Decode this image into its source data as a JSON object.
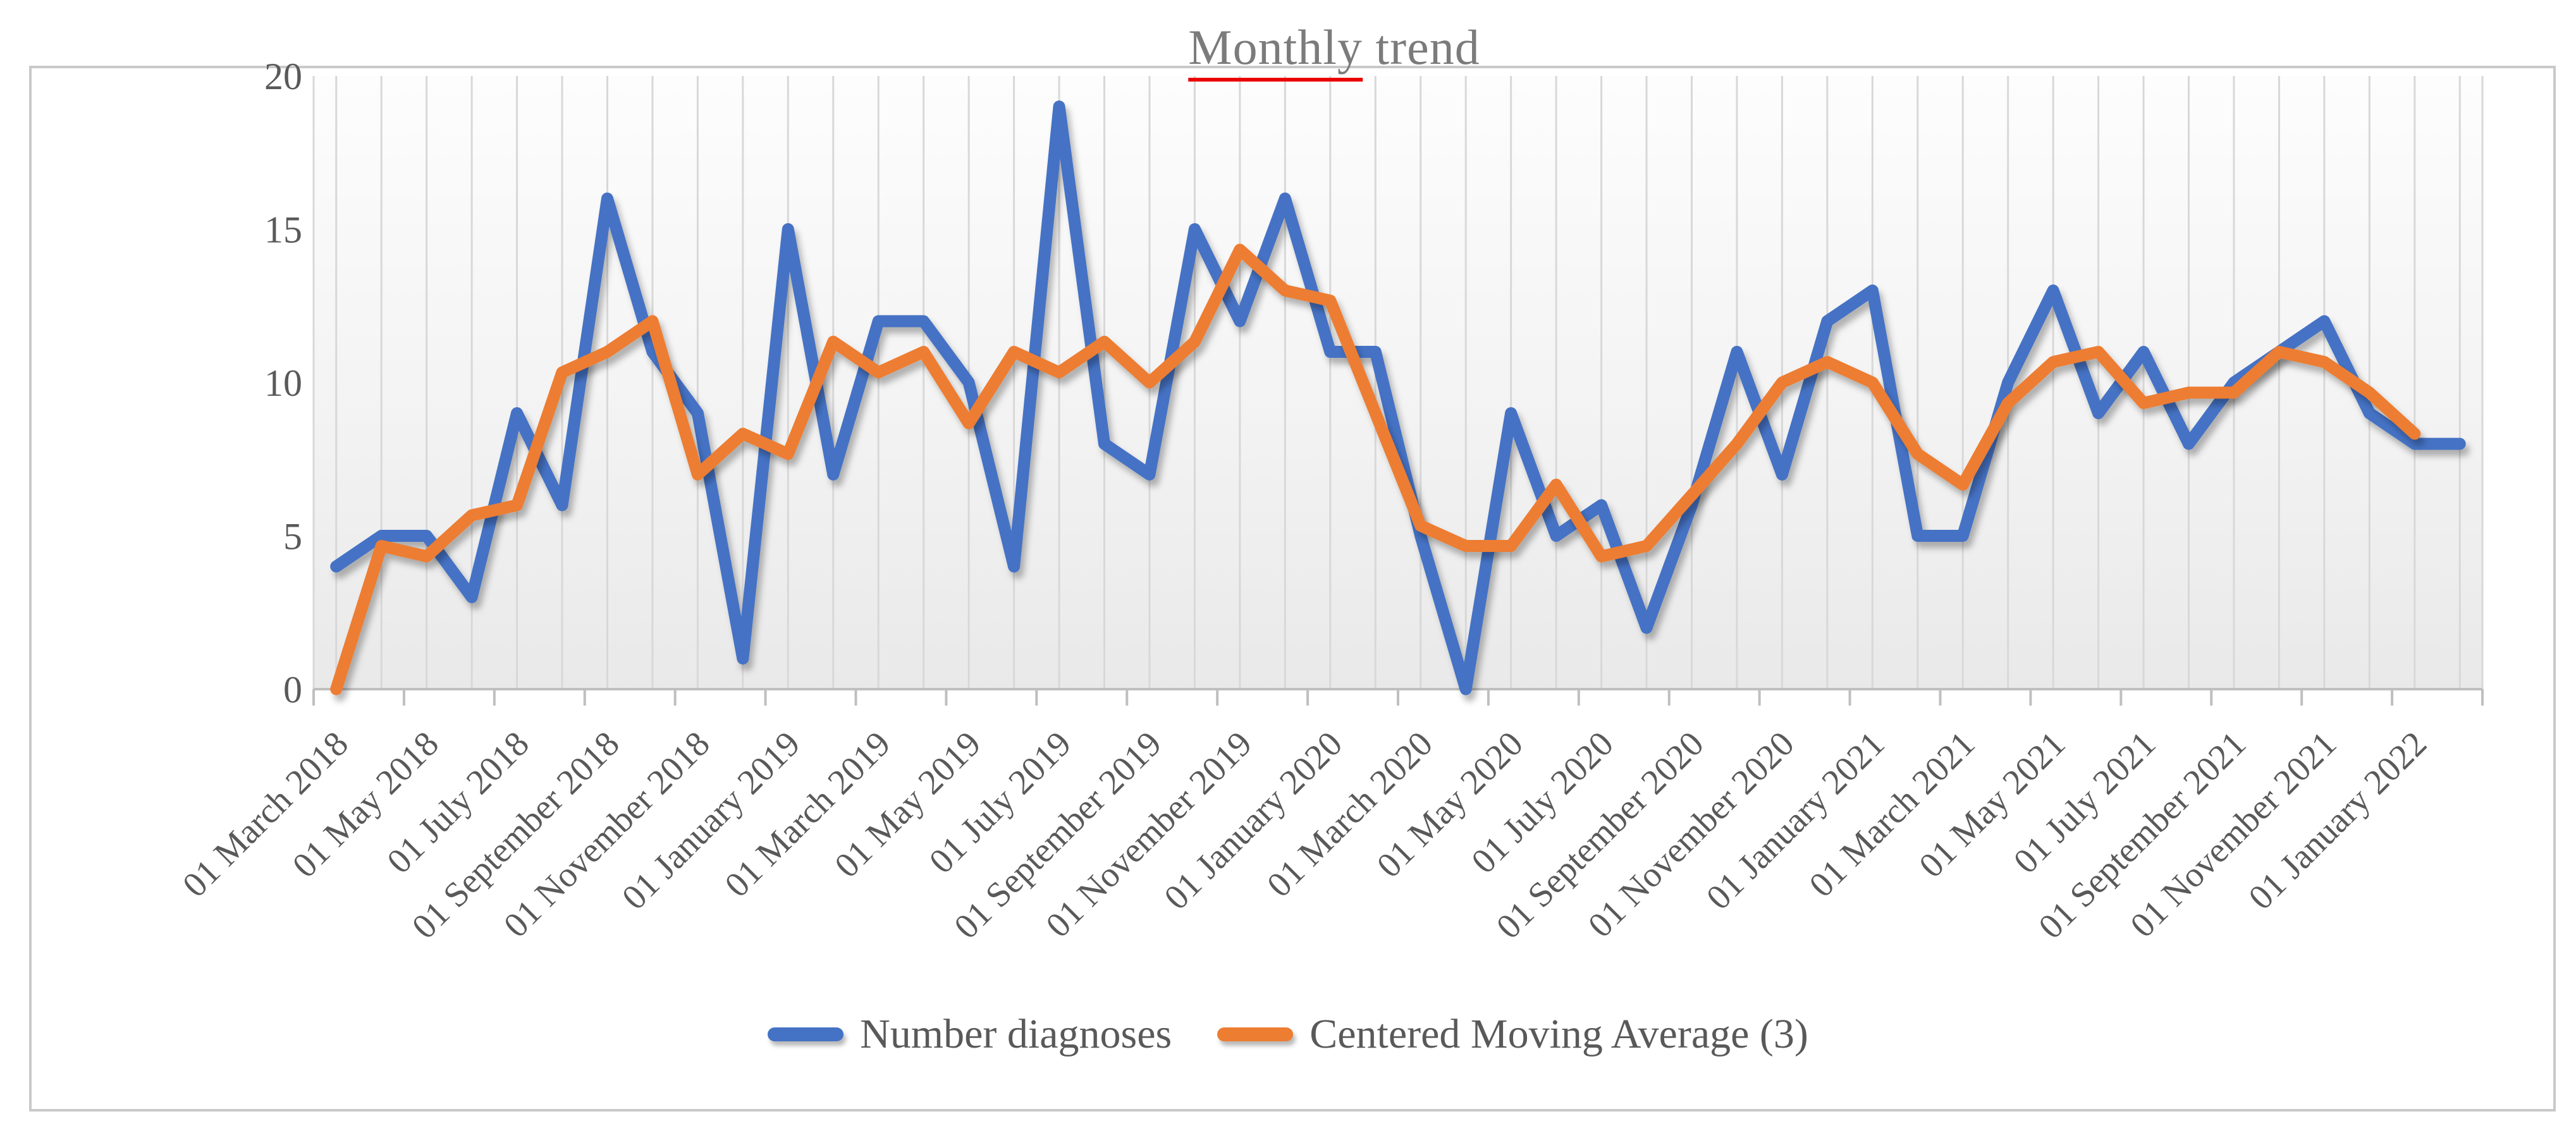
{
  "figure": {
    "title": {
      "underlined_word": "Monthly",
      "rest": " trend"
    }
  },
  "chart_data": {
    "type": "line",
    "title": "Monthly trend",
    "xlabel": "",
    "ylabel": "",
    "ylim": [
      0,
      20
    ],
    "yticks": [
      0,
      5,
      10,
      15,
      20
    ],
    "grid": "vertical gridline at every monthly point, no horizontal gridlines",
    "legend_position": "bottom center",
    "plot_background": "light gray fading to white toward the top",
    "x_start": "March 2018",
    "x_end": "February 2022",
    "x_points": 48,
    "tick_labels": [
      "01 March 2018",
      "01 May 2018",
      "01 July 2018",
      "01 September 2018",
      "01 November 2018",
      "01 January 2019",
      "01 March 2019",
      "01 May 2019",
      "01 July 2019",
      "01 September 2019",
      "01 November 2019",
      "01 January 2020",
      "01 March 2020",
      "01 May 2020",
      "01 July 2020",
      "01 September 2020",
      "01 November 2020",
      "01 January 2021",
      "01 March 2021",
      "01 May 2021",
      "01 July 2021",
      "01 September 2021",
      "01 November 2021",
      "01 January 2022"
    ],
    "series": [
      {
        "name": "Number diagnoses",
        "color": "#4472C4",
        "values": [
          4,
          5,
          5,
          3,
          9,
          6,
          16,
          11,
          9,
          1,
          15,
          7,
          12,
          12,
          10,
          4,
          19,
          8,
          7,
          15,
          12,
          16,
          11,
          11,
          5,
          0,
          9,
          5,
          6,
          2,
          6,
          11,
          7,
          12,
          13,
          5,
          5,
          10,
          13,
          9,
          11,
          8,
          10,
          11,
          12,
          9,
          8,
          8
        ]
      },
      {
        "name": "Centered Moving Average (3)",
        "color": "#ED7D31",
        "values": [
          0,
          4.67,
          4.33,
          5.67,
          6,
          10.33,
          11,
          12,
          7,
          8.33,
          7.67,
          11.33,
          10.33,
          11,
          8.67,
          11,
          10.33,
          11.33,
          10,
          11.33,
          14.33,
          13,
          12.67,
          9,
          5.33,
          4.67,
          4.67,
          6.67,
          4.33,
          4.67,
          6.33,
          8,
          10,
          10.67,
          10,
          7.67,
          6.67,
          9.33,
          10.67,
          11,
          9.33,
          9.67,
          9.67,
          11,
          10.67,
          9.67,
          8.33,
          null
        ]
      }
    ],
    "colors": {
      "axis_text": "#595959",
      "title_text": "#7b7b7b",
      "spellcheck_underline": "#eb0000",
      "gridline": "#d8d8d8",
      "axis_line": "#bfbfbf"
    }
  },
  "legend": {
    "items": [
      {
        "label": "Number diagnoses",
        "color": "#4472C4"
      },
      {
        "label": "Centered Moving Average (3)",
        "color": "#ED7D31"
      }
    ]
  }
}
